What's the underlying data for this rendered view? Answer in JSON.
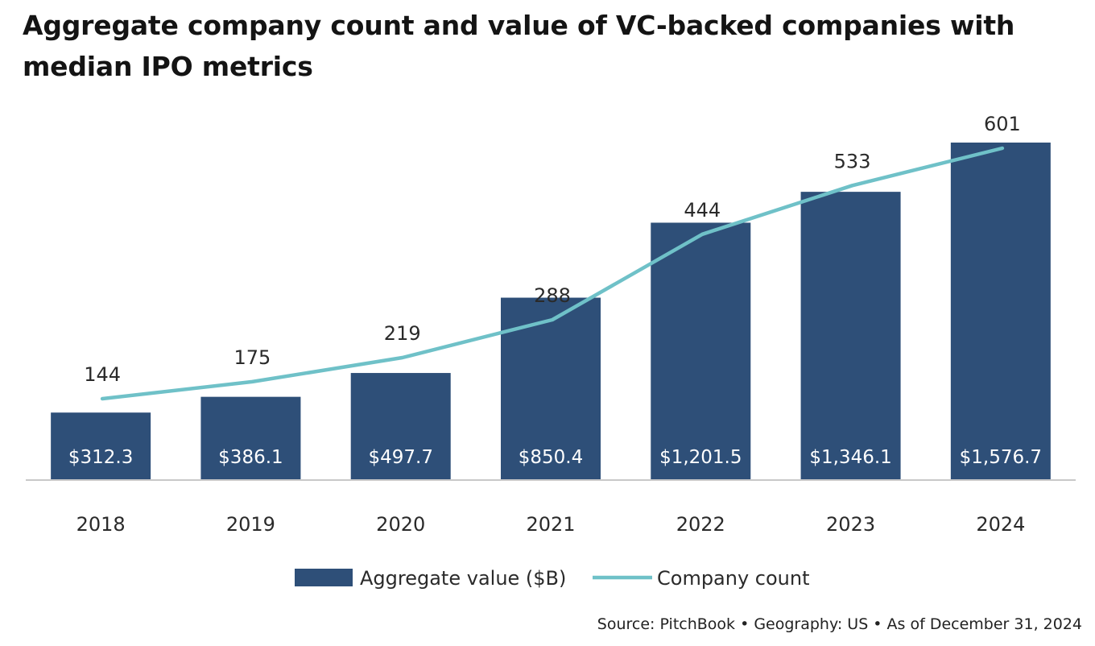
{
  "title": "Aggregate company count and value of VC-backed companies with median IPO metrics",
  "source": "Source: PitchBook  •  Geography: US  •  As of December 31, 2024",
  "colors": {
    "bar": "#2e4f78",
    "line": "#6fc1c8",
    "axis": "#c9c9c9",
    "text": "#2a2a2a",
    "bar_label": "#ffffff"
  },
  "chart_data": {
    "type": "bar",
    "categories": [
      "2018",
      "2019",
      "2020",
      "2021",
      "2022",
      "2023",
      "2024"
    ],
    "series": [
      {
        "name": "Aggregate value ($B)",
        "type": "bar",
        "values": [
          312.3,
          386.1,
          497.7,
          850.4,
          1201.5,
          1346.1,
          1576.7
        ],
        "labels": [
          "$312.3",
          "$386.1",
          "$497.7",
          "$850.4",
          "$1,201.5",
          "$1,346.1",
          "$1,576.7"
        ]
      },
      {
        "name": "Company count",
        "type": "line",
        "values": [
          144,
          175,
          219,
          288,
          444,
          533,
          601
        ],
        "labels": [
          "144",
          "175",
          "219",
          "288",
          "444",
          "533",
          "601"
        ]
      }
    ],
    "legend_position": "bottom",
    "grid": false
  }
}
